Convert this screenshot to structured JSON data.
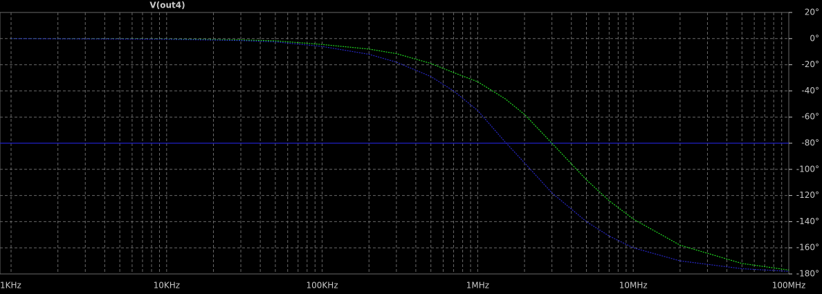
{
  "chart_data": {
    "type": "line",
    "title": "V(out4)",
    "title_color": "#33e633",
    "x": [
      1000,
      10000,
      30000,
      50000,
      100000,
      200000,
      300000,
      500000,
      700000,
      1000000,
      1500000,
      2000000,
      3000000,
      5000000,
      7000000,
      10000000,
      20000000,
      50000000,
      100000000
    ],
    "series": [
      {
        "color": "#22dd22",
        "values": [
          0,
          -0.3,
          -1,
          -1.7,
          -4.5,
          -8,
          -11.5,
          -19,
          -26,
          -33,
          -46,
          -58,
          -80,
          -108,
          -124,
          -138,
          -158,
          -172,
          -177
        ]
      },
      {
        "color": "#2828c8",
        "values": [
          0,
          -0.5,
          -1.5,
          -2.5,
          -6,
          -12,
          -18,
          -29,
          -40,
          -55,
          -79,
          -95,
          -118,
          -140,
          -151,
          -160,
          -170,
          -176,
          -178
        ]
      }
    ],
    "reference_line": {
      "value": -80,
      "color": "#2020c8"
    },
    "xscale": "log",
    "xlim": [
      1000,
      100000000
    ],
    "xticks": [
      {
        "value": 1000,
        "label": "1KHz"
      },
      {
        "value": 10000,
        "label": "10KHz"
      },
      {
        "value": 100000,
        "label": "100KHz"
      },
      {
        "value": 1000000,
        "label": "1MHz"
      },
      {
        "value": 10000000,
        "label": "10MHz"
      },
      {
        "value": 100000000,
        "label": "100MHz"
      }
    ],
    "ylim": [
      -180,
      20
    ],
    "yticks": [
      {
        "value": 20,
        "label": "20°"
      },
      {
        "value": 0,
        "label": "0°"
      },
      {
        "value": -20,
        "label": "-20°"
      },
      {
        "value": -40,
        "label": "-40°"
      },
      {
        "value": -60,
        "label": "-60°"
      },
      {
        "value": -80,
        "label": "-80°"
      },
      {
        "value": -100,
        "label": "-100°"
      },
      {
        "value": -120,
        "label": "-120°"
      },
      {
        "value": -140,
        "label": "-140°"
      },
      {
        "value": -160,
        "label": "-160°"
      },
      {
        "value": -180,
        "label": "-180°"
      }
    ],
    "grid": true
  }
}
